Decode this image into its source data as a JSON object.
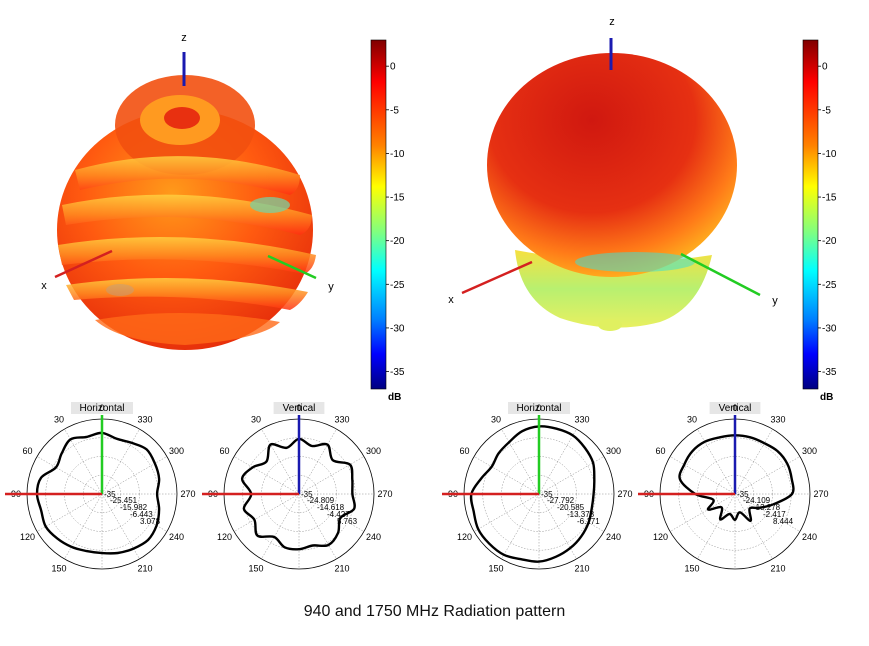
{
  "caption": "940 and 1750 MHz Radiation pattern",
  "colors": {
    "x_axis": "#d42020",
    "y_axis": "#22cc22",
    "z_axis": "#1a1ab0",
    "trace": "#000000",
    "grid": "#888888"
  },
  "chart_data": [
    {
      "type": "surface-3d",
      "frequency_mhz": 940,
      "axis_labels": [
        "x",
        "y",
        "z"
      ],
      "colorbar": {
        "unit": "dB",
        "ticks": [
          0,
          -5,
          -10,
          -15,
          -20,
          -25,
          -30,
          -35
        ],
        "range": [
          -37,
          3
        ],
        "colormap": "jet"
      }
    },
    {
      "type": "surface-3d",
      "frequency_mhz": 1750,
      "axis_labels": [
        "x",
        "y",
        "z"
      ],
      "colorbar": {
        "unit": "dB",
        "ticks": [
          0,
          -5,
          -10,
          -15,
          -20,
          -25,
          -30,
          -35
        ],
        "range": [
          -37,
          3
        ],
        "colormap": "jet"
      }
    },
    {
      "type": "polar",
      "title": "Horizontal",
      "frequency_mhz": 940,
      "angle_labels": [
        "0",
        "30",
        "60",
        "90",
        "120",
        "150",
        "210",
        "240",
        "270",
        "300",
        "330"
      ],
      "radial_labels": [
        "-35",
        "-25.451",
        "-15.982",
        "-6.443",
        "3.078"
      ],
      "rmin": -35,
      "rmax": 3.078,
      "angles": [
        0,
        15,
        30,
        45,
        60,
        75,
        90,
        105,
        120,
        135,
        150,
        165,
        180,
        195,
        210,
        225,
        240,
        255,
        270,
        285,
        300,
        315,
        330,
        345
      ],
      "values": [
        -4,
        -5,
        -3,
        -6,
        -8,
        -3,
        -2,
        -3,
        -2,
        -3,
        -4,
        -5,
        -5,
        -4,
        -3,
        -2,
        -3,
        -5,
        -7,
        -5,
        -4,
        -3,
        -5,
        -6
      ]
    },
    {
      "type": "polar",
      "title": "Vertical",
      "frequency_mhz": 940,
      "angle_labels": [
        "0",
        "30",
        "60",
        "90",
        "120",
        "150",
        "210",
        "240",
        "270",
        "300",
        "330"
      ],
      "radial_labels": [
        "-35",
        "-24.809",
        "-14.618",
        "-4.427",
        "5.763"
      ],
      "rmin": -35,
      "rmax": 5.763,
      "angles": [
        0,
        15,
        30,
        45,
        60,
        75,
        90,
        105,
        120,
        135,
        150,
        165,
        180,
        195,
        210,
        225,
        240,
        255,
        270,
        285,
        300,
        315,
        330,
        345
      ],
      "values": [
        -5,
        -9,
        -4,
        -10,
        -6,
        -3,
        -9,
        -4,
        -7,
        -3,
        -8,
        -5,
        -5,
        -6,
        -3,
        -5,
        -9,
        -4,
        -6,
        -5,
        -3,
        -9,
        -4,
        -8
      ]
    },
    {
      "type": "polar",
      "title": "Horizontal",
      "frequency_mhz": 1750,
      "angle_labels": [
        "0",
        "30",
        "60",
        "90",
        "120",
        "150",
        "210",
        "240",
        "270",
        "300",
        "330"
      ],
      "radial_labels": [
        "-35",
        "-27.792",
        "-20.585",
        "-13.378",
        "-6.171"
      ],
      "rmin": -35,
      "rmax": -6.171,
      "angles": [
        0,
        15,
        30,
        45,
        60,
        75,
        90,
        105,
        120,
        135,
        150,
        165,
        180,
        195,
        210,
        225,
        240,
        255,
        270,
        285,
        300,
        315,
        330,
        345
      ],
      "values": [
        -9,
        -10,
        -12,
        -13,
        -14,
        -12,
        -9,
        -9,
        -8,
        -8,
        -8,
        -9,
        -9,
        -10,
        -11,
        -12,
        -13,
        -14,
        -14,
        -13,
        -11,
        -10,
        -9,
        -9
      ]
    },
    {
      "type": "polar",
      "title": "Vertical",
      "frequency_mhz": 1750,
      "angle_labels": [
        "0",
        "30",
        "60",
        "90",
        "120",
        "150",
        "210",
        "240",
        "270",
        "300",
        "330"
      ],
      "radial_labels": [
        "-35",
        "-24.109",
        "-13.278",
        "-2.417",
        "8.444"
      ],
      "rmin": -35,
      "rmax": 8.444,
      "angles": [
        0,
        15,
        30,
        45,
        60,
        75,
        90,
        105,
        120,
        135,
        150,
        165,
        180,
        195,
        210,
        225,
        240,
        255,
        270,
        285,
        300,
        315,
        330,
        345
      ],
      "values": [
        -1,
        -1,
        0,
        0,
        -1,
        -2,
        -12,
        -22,
        -17,
        -24,
        -18,
        -23,
        -20,
        -24,
        -17,
        -23,
        -19,
        -12,
        -2,
        -1,
        0,
        0,
        -1,
        -1
      ]
    }
  ]
}
